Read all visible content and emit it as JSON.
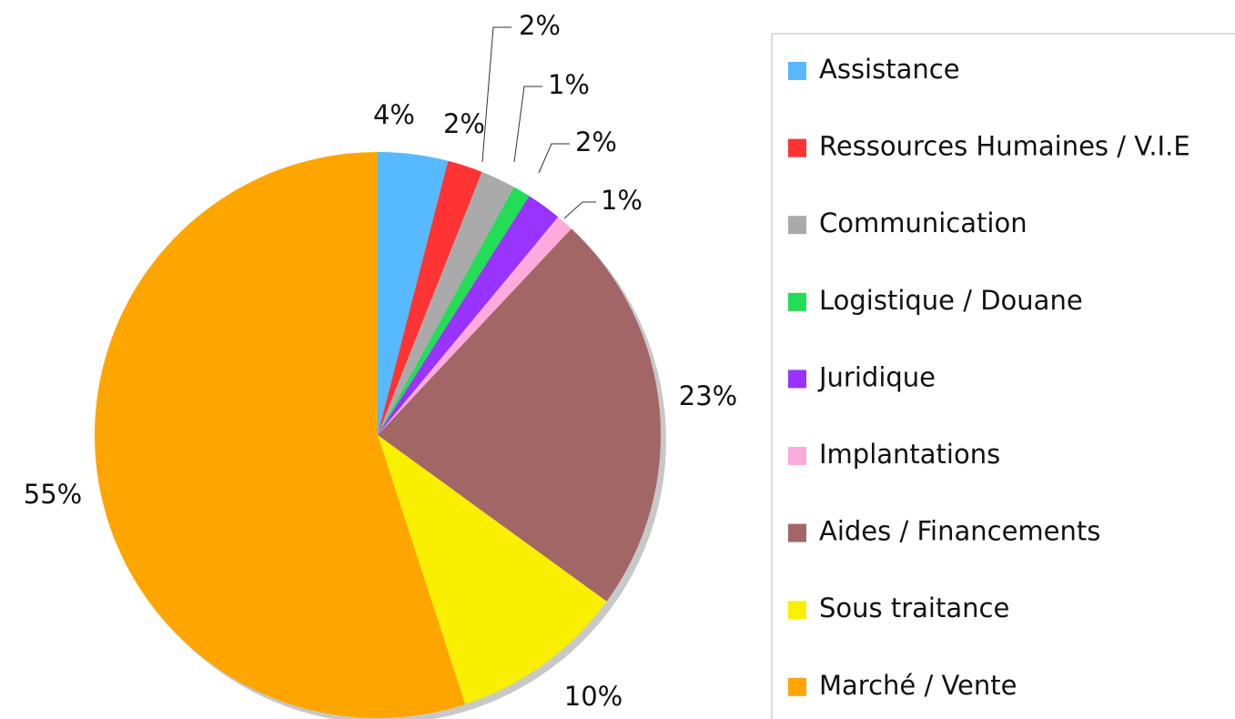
{
  "chart_data": {
    "type": "pie",
    "categories": [
      "Assistance",
      "Ressources Humaines / V.I.E",
      "Communication",
      "Logistique / Douane",
      "Juridique",
      "Implantations",
      "Aides / Financements",
      "Sous traitance",
      "Marché / Vente"
    ],
    "values": [
      4,
      2,
      2,
      1,
      2,
      1,
      23,
      10,
      55
    ],
    "value_labels": [
      "4%",
      "2%",
      "2%",
      "1%",
      "2%",
      "1%",
      "23%",
      "10%",
      "55%"
    ],
    "colors": [
      "#57b9ff",
      "#ff3333",
      "#aaaaaa",
      "#22dd55",
      "#9933ff",
      "#ffaadd",
      "#a36666",
      "#f8f000",
      "#ffa500"
    ]
  }
}
